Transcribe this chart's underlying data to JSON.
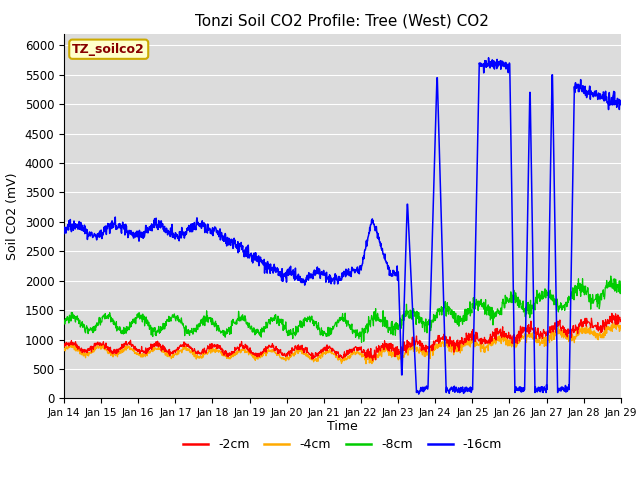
{
  "title": "Tonzi Soil CO2 Profile: Tree (West) CO2",
  "ylabel": "Soil CO2 (mV)",
  "xlabel": "Time",
  "legend_label": "TZ_soilco2",
  "ylim": [
    0,
    6200
  ],
  "yticks": [
    0,
    500,
    1000,
    1500,
    2000,
    2500,
    3000,
    3500,
    4000,
    4500,
    5000,
    5500,
    6000
  ],
  "colors": {
    "2cm": "#ff0000",
    "4cm": "#ffaa00",
    "8cm": "#00cc00",
    "16cm": "#0000ff"
  },
  "bg_color": "#dcdcdc",
  "legend_box_facecolor": "#ffffcc",
  "legend_box_edgecolor": "#ccaa00",
  "legend_text_color": "#880000",
  "n_days": 15,
  "start_day": 14,
  "figsize": [
    6.4,
    4.8
  ],
  "dpi": 100
}
